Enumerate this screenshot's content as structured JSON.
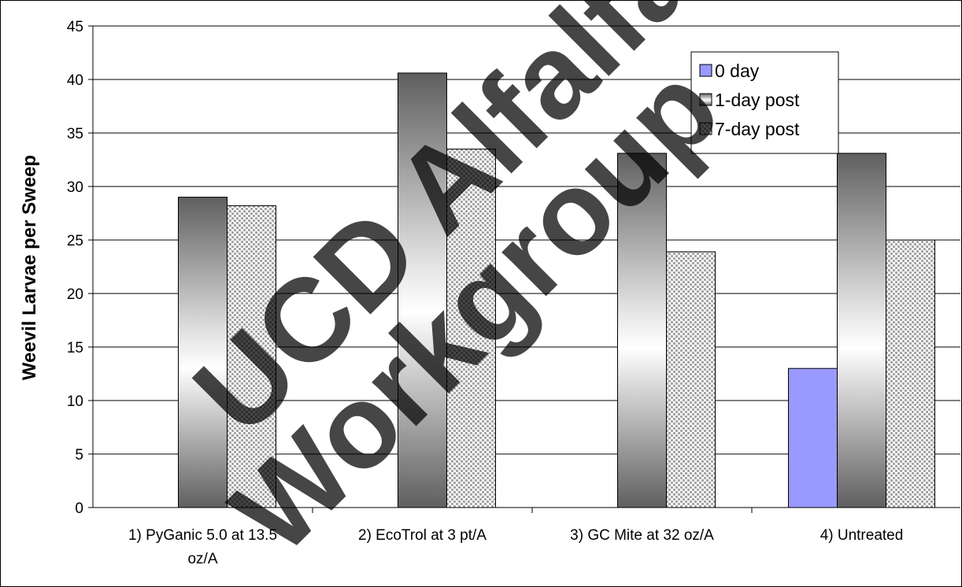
{
  "chart_data": {
    "type": "bar",
    "ylabel": "Weevil Larvae per Sweep",
    "xlabel": "",
    "ylim": [
      0,
      45
    ],
    "ytick_step": 5,
    "grid": true,
    "legend_position": "top-right",
    "categories": [
      [
        "1) PyGanic 5.0 at 13.5",
        "oz/A"
      ],
      [
        "2) EcoTrol at 3 pt/A"
      ],
      [
        "3) GC Mite at 32 oz/A"
      ],
      [
        "4) Untreated"
      ]
    ],
    "series": [
      {
        "name": "0 day",
        "values": [
          null,
          null,
          null,
          13
        ],
        "color": "#9999ff",
        "style": "solid"
      },
      {
        "name": "1-day post",
        "values": [
          29,
          40.6,
          33.1,
          33.1
        ],
        "color": "#6e6e6e",
        "style": "gradient"
      },
      {
        "name": "7-day post",
        "values": [
          28.2,
          33.5,
          23.9,
          25
        ],
        "color": "#c8c8c8",
        "style": "dotted"
      }
    ]
  },
  "watermark": {
    "lines": [
      "UCD Alfalfa",
      "Workgroup"
    ],
    "color": "#000000"
  }
}
